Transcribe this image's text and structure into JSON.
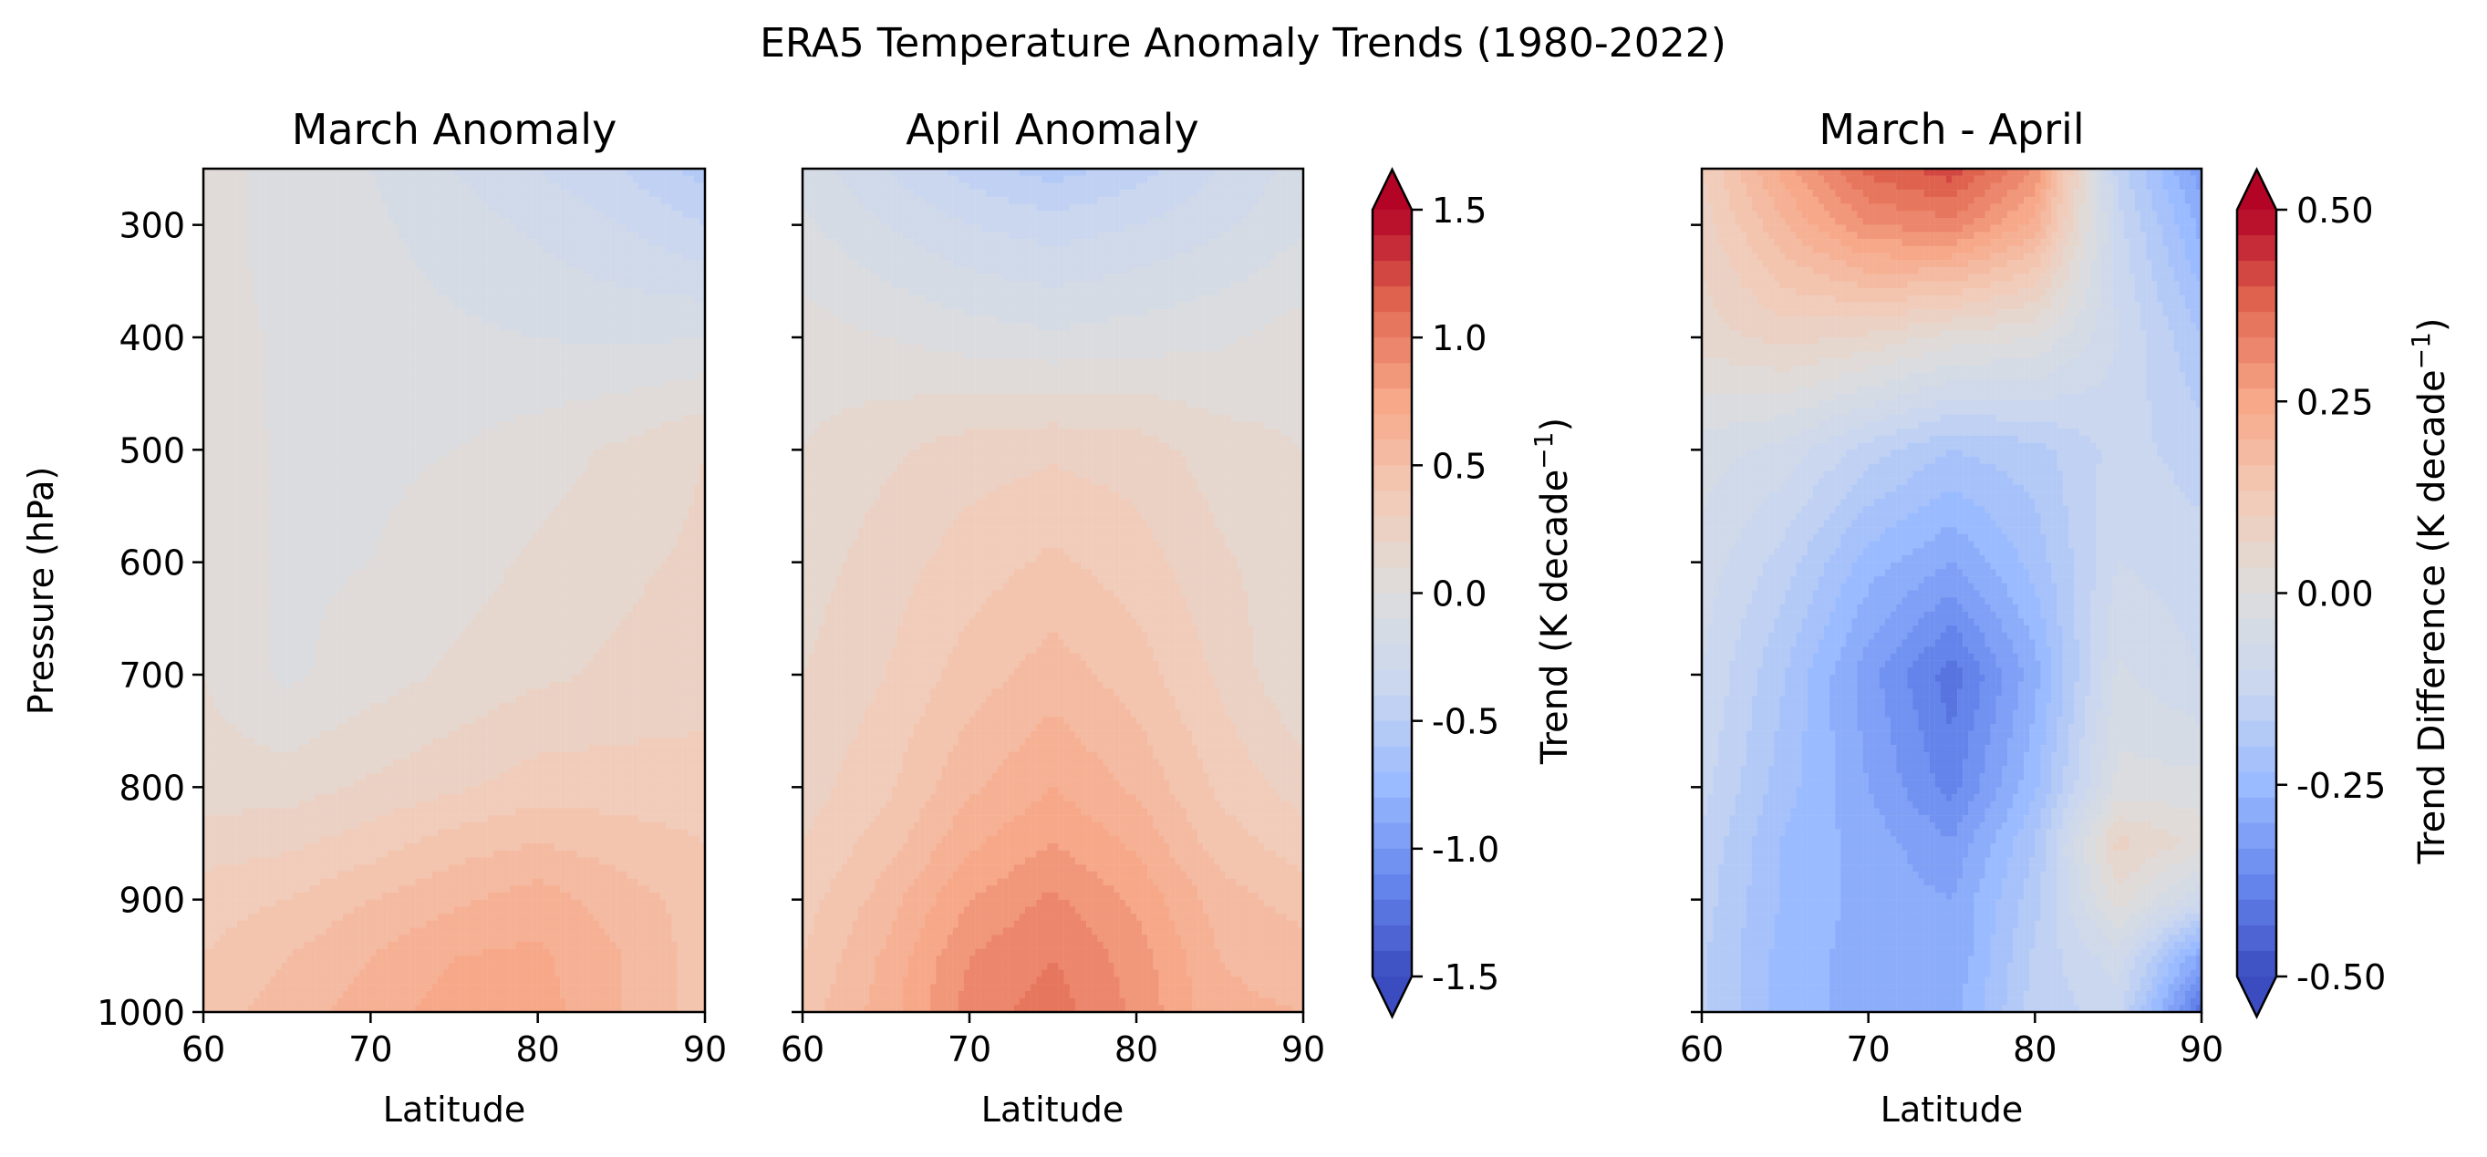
{
  "chart_data": {
    "title": "ERA5 Temperature Anomaly Trends (1980-2022)",
    "type": "heatmap",
    "x_tick_labels": [
      "60",
      "70",
      "80",
      "90"
    ],
    "y_tick_labels": [
      "300",
      "400",
      "500",
      "600",
      "700",
      "800",
      "900",
      "1000"
    ],
    "xlabel": "Latitude",
    "ylabel": "Pressure (hPa)",
    "xlim": [
      60,
      90
    ],
    "ylim": [
      1000,
      250
    ],
    "lat": [
      60,
      65,
      70,
      75,
      80,
      85,
      90
    ],
    "pressure": [
      250,
      300,
      400,
      500,
      600,
      700,
      800,
      850,
      900,
      950,
      1000
    ],
    "panels": [
      {
        "title": "March Anomaly",
        "colorbar": "main",
        "values": [
          [
            0.05,
            -0.05,
            -0.1,
            -0.2,
            -0.3,
            -0.4,
            -0.55
          ],
          [
            0.05,
            -0.05,
            -0.08,
            -0.15,
            -0.22,
            -0.3,
            -0.4
          ],
          [
            0.05,
            -0.02,
            -0.05,
            -0.08,
            -0.1,
            -0.12,
            -0.1
          ],
          [
            0.07,
            -0.02,
            -0.02,
            0.0,
            0.05,
            0.12,
            0.2
          ],
          [
            0.08,
            -0.02,
            0.0,
            0.05,
            0.12,
            0.18,
            0.22
          ],
          [
            0.1,
            -0.02,
            0.05,
            0.12,
            0.18,
            0.22,
            0.25
          ],
          [
            0.15,
            0.15,
            0.22,
            0.28,
            0.35,
            0.35,
            0.35
          ],
          [
            0.25,
            0.28,
            0.35,
            0.45,
            0.5,
            0.45,
            0.4
          ],
          [
            0.35,
            0.4,
            0.5,
            0.58,
            0.65,
            0.55,
            0.45
          ],
          [
            0.4,
            0.5,
            0.6,
            0.7,
            0.72,
            0.6,
            0.45
          ],
          [
            0.45,
            0.55,
            0.65,
            0.75,
            0.75,
            0.6,
            0.45
          ]
        ]
      },
      {
        "title": "April Anomaly",
        "colorbar": "main",
        "values": [
          [
            -0.15,
            -0.3,
            -0.45,
            -0.55,
            -0.45,
            -0.3,
            -0.15
          ],
          [
            -0.08,
            -0.2,
            -0.3,
            -0.35,
            -0.3,
            -0.22,
            -0.12
          ],
          [
            0.05,
            0.0,
            -0.05,
            -0.08,
            -0.05,
            -0.02,
            0.05
          ],
          [
            0.1,
            0.18,
            0.25,
            0.28,
            0.25,
            0.15,
            0.1
          ],
          [
            0.15,
            0.25,
            0.35,
            0.42,
            0.35,
            0.22,
            0.12
          ],
          [
            0.2,
            0.3,
            0.45,
            0.55,
            0.45,
            0.28,
            0.1
          ],
          [
            0.25,
            0.38,
            0.58,
            0.7,
            0.58,
            0.38,
            0.25
          ],
          [
            0.3,
            0.45,
            0.68,
            0.8,
            0.68,
            0.45,
            0.35
          ],
          [
            0.35,
            0.55,
            0.8,
            0.92,
            0.78,
            0.55,
            0.45
          ],
          [
            0.4,
            0.62,
            0.9,
            1.0,
            0.85,
            0.6,
            0.55
          ],
          [
            0.45,
            0.65,
            0.95,
            1.05,
            0.88,
            0.62,
            0.6
          ]
        ]
      },
      {
        "title": "March - April",
        "colorbar": "diff",
        "values": [
          [
            0.1,
            0.25,
            0.38,
            0.42,
            0.3,
            -0.15,
            -0.32
          ],
          [
            0.08,
            0.2,
            0.3,
            0.32,
            0.22,
            -0.12,
            -0.28
          ],
          [
            0.05,
            0.08,
            0.06,
            0.02,
            0.0,
            -0.1,
            -0.2
          ],
          [
            -0.05,
            -0.08,
            -0.15,
            -0.2,
            -0.18,
            -0.12,
            -0.15
          ],
          [
            -0.08,
            -0.15,
            -0.25,
            -0.3,
            -0.22,
            -0.1,
            -0.12
          ],
          [
            -0.1,
            -0.2,
            -0.32,
            -0.42,
            -0.28,
            -0.06,
            -0.1
          ],
          [
            -0.12,
            -0.22,
            -0.3,
            -0.38,
            -0.24,
            -0.02,
            -0.02
          ],
          [
            -0.14,
            -0.24,
            -0.28,
            -0.33,
            -0.2,
            0.08,
            0.02
          ],
          [
            -0.15,
            -0.24,
            -0.28,
            -0.3,
            -0.18,
            0.02,
            -0.1
          ],
          [
            -0.16,
            -0.25,
            -0.28,
            -0.3,
            -0.16,
            -0.08,
            -0.3
          ],
          [
            -0.16,
            -0.25,
            -0.28,
            -0.28,
            -0.15,
            -0.12,
            -0.42
          ]
        ]
      }
    ],
    "colorbars": {
      "main": {
        "label": "Trend (K decade$^{-1}$)",
        "label_main": "Trend (K decade",
        "label_sup": "−1",
        "label_close": ")",
        "vmin": -1.5,
        "vmax": 1.5,
        "ticks": [
          1.5,
          1.0,
          0.5,
          0.0,
          -0.5,
          -1.0,
          -1.5
        ],
        "tick_labels": [
          "1.5",
          "1.0",
          "0.5",
          "0.0",
          "-0.5",
          "-1.0",
          "-1.5"
        ],
        "levels": 30,
        "extend": "both",
        "cmap": "coolwarm"
      },
      "diff": {
        "label": "Trend Difference (K decade$^{-1}$)",
        "label_main": "Trend Difference (K decade",
        "label_sup": "−1",
        "label_close": ")",
        "vmin": -0.5,
        "vmax": 0.5,
        "ticks": [
          0.5,
          0.25,
          0.0,
          -0.25,
          -0.5
        ],
        "tick_labels": [
          "0.50",
          "0.25",
          "0.00",
          "-0.25",
          "-0.50"
        ],
        "levels": 30,
        "extend": "both",
        "cmap": "coolwarm"
      }
    },
    "colormap_stops": [
      "#3b4cc0",
      "#6788ee",
      "#9abbff",
      "#c9d7f0",
      "#dddddd",
      "#f2cbb7",
      "#f7a889",
      "#e26952",
      "#b40426"
    ]
  }
}
